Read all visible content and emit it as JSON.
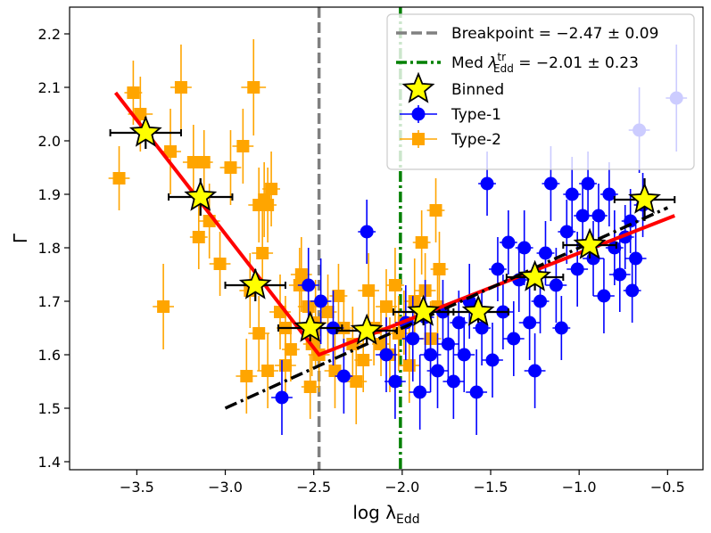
{
  "chart_data": {
    "type": "scatter",
    "xlabel": "log λEdd",
    "xlabel_main": "log λ",
    "xlabel_sub": "Edd",
    "ylabel": "Γ",
    "xlim": [
      -3.88,
      -0.3
    ],
    "ylim": [
      1.385,
      2.25
    ],
    "xticks": [
      -3.5,
      -3.0,
      -2.5,
      -2.0,
      -1.5,
      -1.0,
      -0.5
    ],
    "xtick_labels": [
      "−3.5",
      "−3.0",
      "−2.5",
      "−2.0",
      "−1.5",
      "−1.0",
      "−0.5"
    ],
    "yticks": [
      1.4,
      1.5,
      1.6,
      1.7,
      1.8,
      1.9,
      2.0,
      2.1,
      2.2
    ],
    "ytick_labels": [
      "1.4",
      "1.5",
      "1.6",
      "1.7",
      "1.8",
      "1.9",
      "2.0",
      "2.1",
      "2.2"
    ],
    "grid": false,
    "legend_position": "top-right",
    "vertical_lines": [
      {
        "name": "Breakpoint",
        "x": -2.47,
        "color": "#808080",
        "style": "dashed",
        "legend_text": "Breakpoint = −2.47 ± 0.09"
      },
      {
        "name": "Med λtr Edd",
        "x": -2.01,
        "color": "#008000",
        "style": "dashdot",
        "legend_text_pre": "Med ",
        "legend_sym": "λ",
        "legend_sup": "tr",
        "legend_sub": "Edd",
        "legend_text_post": " = −2.01 ± 0.23"
      }
    ],
    "broken_power_law": {
      "color": "#ff0000",
      "points": [
        [
          -3.62,
          2.09
        ],
        [
          -2.47,
          1.6
        ],
        [
          -0.46,
          1.86
        ]
      ]
    },
    "linear_fit": {
      "color": "#000000",
      "style": "dashdot",
      "points": [
        [
          -3.0,
          1.5
        ],
        [
          -0.5,
          1.875
        ]
      ]
    },
    "series": [
      {
        "name": "Type-2",
        "marker": "square",
        "color": "#ffa500",
        "points": [
          [
            -3.52,
            2.09,
            0.05,
            0.06
          ],
          [
            -3.48,
            2.05,
            0.07,
            0.07
          ],
          [
            -3.31,
            1.98,
            0.06,
            0.08
          ],
          [
            -3.25,
            2.1,
            0.06,
            0.08
          ],
          [
            -3.6,
            1.93,
            0.06,
            0.06
          ],
          [
            -3.18,
            1.96,
            0.06,
            0.07
          ],
          [
            -3.12,
            1.96,
            0.05,
            0.06
          ],
          [
            -3.09,
            1.85,
            0.06,
            0.07
          ],
          [
            -3.15,
            1.82,
            0.05,
            0.06
          ],
          [
            -3.03,
            1.77,
            0.06,
            0.06
          ],
          [
            -2.97,
            1.95,
            0.06,
            0.07
          ],
          [
            -2.9,
            1.99,
            0.06,
            0.07
          ],
          [
            -2.84,
            2.1,
            0.07,
            0.09
          ],
          [
            -2.81,
            1.88,
            0.06,
            0.07
          ],
          [
            -2.78,
            1.89,
            0.05,
            0.07
          ],
          [
            -2.74,
            1.91,
            0.05,
            0.07
          ],
          [
            -2.86,
            1.72,
            0.06,
            0.07
          ],
          [
            -2.79,
            1.79,
            0.06,
            0.08
          ],
          [
            -2.76,
            1.88,
            0.05,
            0.07
          ],
          [
            -2.81,
            1.64,
            0.06,
            0.07
          ],
          [
            -2.88,
            1.56,
            0.06,
            0.07
          ],
          [
            -2.76,
            1.57,
            0.06,
            0.07
          ],
          [
            -2.69,
            1.68,
            0.06,
            0.07
          ],
          [
            -2.66,
            1.65,
            0.05,
            0.06
          ],
          [
            -2.63,
            1.61,
            0.05,
            0.06
          ],
          [
            -2.57,
            1.75,
            0.06,
            0.07
          ],
          [
            -2.58,
            1.73,
            0.06,
            0.07
          ],
          [
            -2.53,
            1.69,
            0.06,
            0.07
          ],
          [
            -2.51,
            1.62,
            0.05,
            0.06
          ],
          [
            -2.49,
            1.66,
            0.06,
            0.08
          ],
          [
            -2.47,
            1.6,
            0.06,
            0.07
          ],
          [
            -2.42,
            1.68,
            0.05,
            0.07
          ],
          [
            -2.38,
            1.57,
            0.06,
            0.07
          ],
          [
            -2.36,
            1.71,
            0.05,
            0.06
          ],
          [
            -2.33,
            1.65,
            0.05,
            0.06
          ],
          [
            -2.28,
            1.62,
            0.06,
            0.07
          ],
          [
            -2.26,
            1.55,
            0.06,
            0.08
          ],
          [
            -2.22,
            1.59,
            0.05,
            0.06
          ],
          [
            -2.19,
            1.72,
            0.06,
            0.07
          ],
          [
            -2.16,
            1.65,
            0.06,
            0.07
          ],
          [
            -2.12,
            1.62,
            0.05,
            0.06
          ],
          [
            -2.09,
            1.69,
            0.06,
            0.07
          ],
          [
            -2.07,
            1.6,
            0.06,
            0.07
          ],
          [
            -2.04,
            1.73,
            0.05,
            0.07
          ],
          [
            -2.02,
            1.64,
            0.06,
            0.07
          ],
          [
            -1.99,
            1.66,
            0.05,
            0.06
          ],
          [
            -1.96,
            1.58,
            0.06,
            0.07
          ],
          [
            -1.93,
            1.7,
            0.06,
            0.08
          ],
          [
            -1.89,
            1.81,
            0.05,
            0.06
          ],
          [
            -1.87,
            1.72,
            0.06,
            0.07
          ],
          [
            -1.84,
            1.63,
            0.06,
            0.07
          ],
          [
            -1.81,
            1.87,
            0.05,
            0.06
          ],
          [
            -1.79,
            1.76,
            0.05,
            0.07
          ],
          [
            -1.8,
            1.69,
            0.05,
            0.07
          ],
          [
            -3.35,
            1.69,
            0.06,
            0.08
          ],
          [
            -2.52,
            1.54,
            0.05,
            0.06
          ],
          [
            -2.66,
            1.58,
            0.06,
            0.07
          ]
        ]
      },
      {
        "name": "Type-1",
        "marker": "circle",
        "color": "#0000ff",
        "points": [
          [
            -2.68,
            1.52,
            0.06,
            0.07
          ],
          [
            -2.53,
            1.73,
            0.06,
            0.07
          ],
          [
            -2.46,
            1.7,
            0.06,
            0.08
          ],
          [
            -2.39,
            1.65,
            0.06,
            0.07
          ],
          [
            -2.33,
            1.56,
            0.05,
            0.07
          ],
          [
            -2.2,
            1.83,
            0.05,
            0.06
          ],
          [
            -2.09,
            1.6,
            0.06,
            0.07
          ],
          [
            -2.04,
            1.55,
            0.06,
            0.07
          ],
          [
            -1.98,
            1.66,
            0.06,
            0.07
          ],
          [
            -1.94,
            1.63,
            0.06,
            0.08
          ],
          [
            -1.9,
            1.53,
            0.06,
            0.07
          ],
          [
            -1.87,
            1.67,
            0.05,
            0.07
          ],
          [
            -1.84,
            1.6,
            0.06,
            0.07
          ],
          [
            -1.8,
            1.57,
            0.06,
            0.07
          ],
          [
            -1.77,
            1.68,
            0.05,
            0.06
          ],
          [
            -1.74,
            1.62,
            0.06,
            0.07
          ],
          [
            -1.71,
            1.55,
            0.06,
            0.07
          ],
          [
            -1.68,
            1.66,
            0.05,
            0.06
          ],
          [
            -1.65,
            1.6,
            0.06,
            0.07
          ],
          [
            -1.62,
            1.7,
            0.06,
            0.07
          ],
          [
            -1.58,
            1.53,
            0.06,
            0.08
          ],
          [
            -1.55,
            1.65,
            0.05,
            0.07
          ],
          [
            -1.52,
            1.92,
            0.05,
            0.06
          ],
          [
            -1.49,
            1.59,
            0.06,
            0.07
          ],
          [
            -1.46,
            1.76,
            0.05,
            0.06
          ],
          [
            -1.43,
            1.68,
            0.06,
            0.07
          ],
          [
            -1.4,
            1.81,
            0.05,
            0.06
          ],
          [
            -1.37,
            1.63,
            0.06,
            0.07
          ],
          [
            -1.34,
            1.74,
            0.05,
            0.06
          ],
          [
            -1.31,
            1.8,
            0.05,
            0.07
          ],
          [
            -1.28,
            1.66,
            0.06,
            0.07
          ],
          [
            -1.25,
            1.57,
            0.06,
            0.07
          ],
          [
            -1.22,
            1.7,
            0.05,
            0.06
          ],
          [
            -1.19,
            1.79,
            0.05,
            0.06
          ],
          [
            -1.16,
            1.92,
            0.05,
            0.07
          ],
          [
            -1.13,
            1.73,
            0.06,
            0.07
          ],
          [
            -1.1,
            1.65,
            0.05,
            0.06
          ],
          [
            -1.07,
            1.83,
            0.05,
            0.06
          ],
          [
            -1.04,
            1.9,
            0.05,
            0.07
          ],
          [
            -1.01,
            1.76,
            0.06,
            0.07
          ],
          [
            -0.98,
            1.86,
            0.05,
            0.06
          ],
          [
            -0.95,
            1.92,
            0.05,
            0.06
          ],
          [
            -0.92,
            1.78,
            0.06,
            0.07
          ],
          [
            -0.89,
            1.86,
            0.05,
            0.06
          ],
          [
            -0.86,
            1.71,
            0.06,
            0.07
          ],
          [
            -0.83,
            1.9,
            0.05,
            0.06
          ],
          [
            -0.8,
            1.8,
            0.05,
            0.07
          ],
          [
            -0.77,
            1.75,
            0.06,
            0.07
          ],
          [
            -0.74,
            1.82,
            0.05,
            0.06
          ],
          [
            -0.71,
            1.85,
            0.05,
            0.06
          ],
          [
            -0.68,
            1.78,
            0.06,
            0.07
          ],
          [
            -0.66,
            2.02,
            0.06,
            0.08
          ],
          [
            -0.64,
            1.88,
            0.05,
            0.06
          ],
          [
            -0.7,
            1.72,
            0.05,
            0.06
          ],
          [
            -0.45,
            2.08,
            0.06,
            0.1
          ]
        ]
      },
      {
        "name": "Binned",
        "marker": "star",
        "color": "#ffff00",
        "points": [
          [
            -3.45,
            2.015,
            0.2,
            0.03
          ],
          [
            -3.14,
            1.895,
            0.18,
            0.035
          ],
          [
            -2.83,
            1.73,
            0.17,
            0.03
          ],
          [
            -2.52,
            1.65,
            0.18,
            0.025
          ],
          [
            -2.2,
            1.645,
            0.17,
            0.025
          ],
          [
            -1.88,
            1.68,
            0.17,
            0.025
          ],
          [
            -1.57,
            1.68,
            0.17,
            0.02
          ],
          [
            -1.25,
            1.745,
            0.16,
            0.025
          ],
          [
            -0.94,
            1.805,
            0.15,
            0.025
          ],
          [
            -0.63,
            1.89,
            0.17,
            0.04
          ]
        ]
      }
    ],
    "legend": [
      {
        "label": "Breakpoint = −2.47 ± 0.09"
      },
      {
        "label": "Med λtr Edd = −2.01 ± 0.23"
      },
      {
        "label": "Binned"
      },
      {
        "label": "Type-1"
      },
      {
        "label": "Type-2"
      }
    ]
  }
}
